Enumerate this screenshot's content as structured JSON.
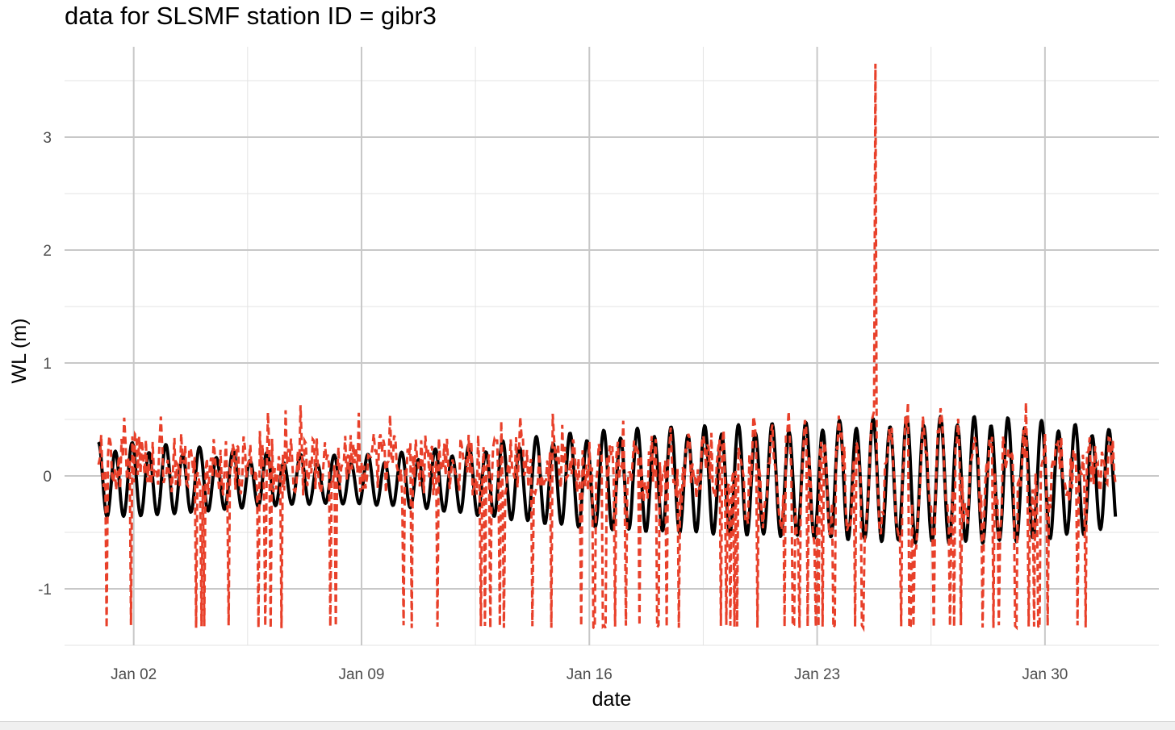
{
  "chart_data": {
    "type": "line",
    "title": "data for SLSMF station ID = gibr3",
    "xlabel": "date",
    "ylabel": "WL (m)",
    "x_range": [
      "2022-12-30T21:00",
      "2023-02-02T12:00"
    ],
    "x_data_start": "2022-12-31T22:00",
    "x_data_end": "2023-02-01T04:00",
    "x_ticks": [
      {
        "date": "2023-01-02",
        "label": "Jan 02"
      },
      {
        "date": "2023-01-09",
        "label": "Jan 09"
      },
      {
        "date": "2023-01-16",
        "label": "Jan 16"
      },
      {
        "date": "2023-01-23",
        "label": "Jan 23"
      },
      {
        "date": "2023-01-30",
        "label": "Jan 30"
      }
    ],
    "ylim": [
      -1.5,
      3.8
    ],
    "y_ticks": [
      -1,
      0,
      1,
      2,
      3
    ],
    "grid": true,
    "series": [
      {
        "style": "solid",
        "color": "#000000",
        "description": "semi-diurnal tidal signal, amplitude about 0.3-0.6 m",
        "tidal_period_hours": 12.42,
        "mean": -0.05,
        "amplitude_range": [
          0.25,
          0.58
        ]
      },
      {
        "style": "dashed",
        "color": "#e8402a",
        "description": "noisy observations between about -0.2 and 0.65 m with spikes down to about -1.35 m",
        "min": -1.35,
        "max_spike": {
          "date": "2023-01-24T19:00",
          "value": 3.65
        },
        "typical_range": [
          -0.25,
          0.65
        ]
      }
    ]
  }
}
